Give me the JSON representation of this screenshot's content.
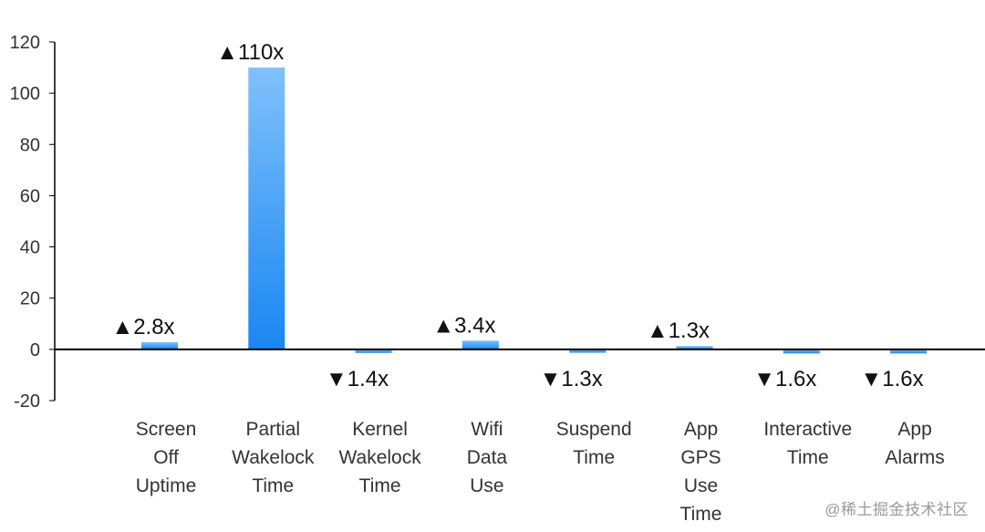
{
  "chart_data": {
    "type": "bar",
    "categories": [
      [
        "Screen",
        "Off",
        "Uptime"
      ],
      [
        "Partial",
        "Wakelock",
        "Time"
      ],
      [
        "Kernel",
        "Wakelock",
        "Time"
      ],
      [
        "Wifi",
        "Data",
        "Use"
      ],
      [
        "Suspend",
        "Time"
      ],
      [
        "App",
        "GPS",
        "Use",
        "Time"
      ],
      [
        "Interactive",
        "Time"
      ],
      [
        "App",
        "Alarms"
      ]
    ],
    "values": [
      2.8,
      110,
      -1.4,
      3.4,
      -1.3,
      1.3,
      -1.6,
      -1.6
    ],
    "data_labels": [
      "▲2.8x",
      "▲110x",
      "▼1.4x",
      "▲3.4x",
      "▼1.3x",
      "▲1.3x",
      "▼1.6x",
      "▼1.6x"
    ],
    "yticks": [
      120,
      100,
      80,
      60,
      40,
      20,
      0,
      -20
    ],
    "ylim": [
      -20,
      120
    ],
    "grid": false,
    "colors": {
      "bar_top": "#7fc1fb",
      "bar_bottom": "#1a86f2",
      "axis": "#000000"
    }
  },
  "watermark": "@稀土掘金技术社区"
}
